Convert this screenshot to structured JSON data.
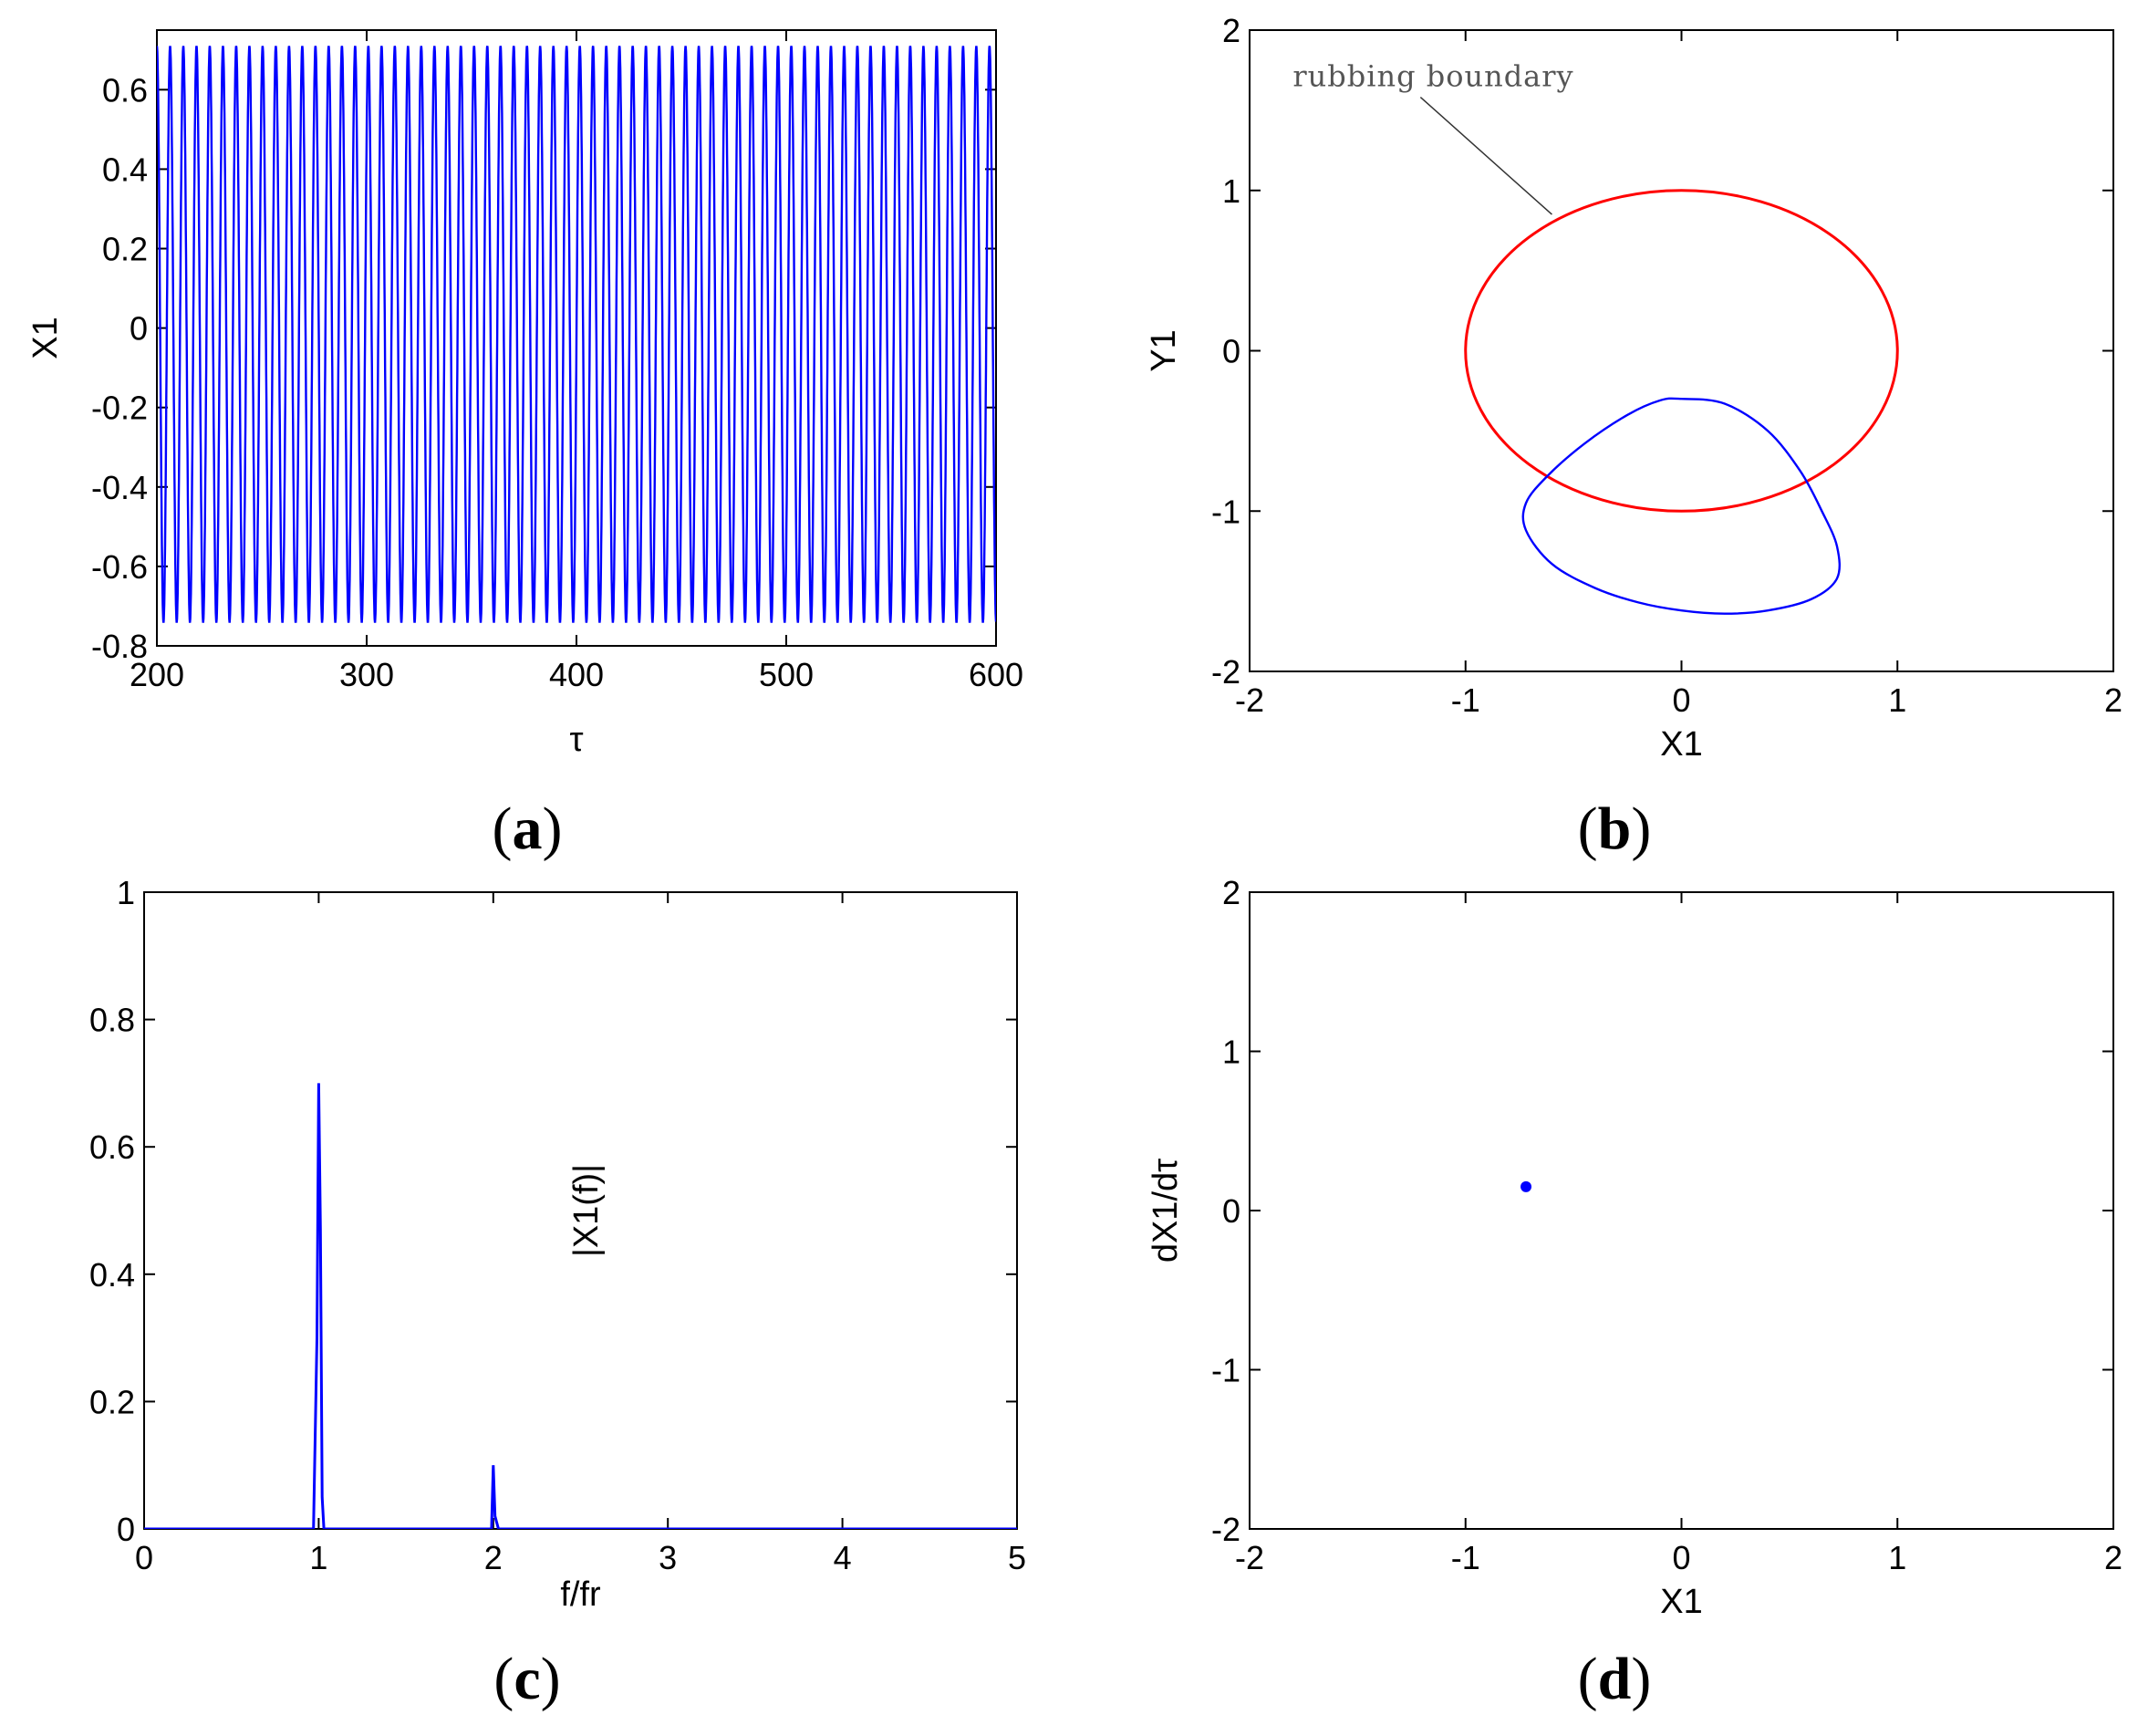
{
  "colors": {
    "trace": "#0000ff",
    "boundary": "#ff0000",
    "axis": "#000000",
    "annotation": "#555555"
  },
  "panels": {
    "a": {
      "caption_open": "(",
      "caption_letter": "a",
      "caption_close": ")"
    },
    "b": {
      "caption_open": "(",
      "caption_letter": "b",
      "caption_close": ")"
    },
    "c": {
      "caption_open": "(",
      "caption_letter": "c",
      "caption_close": ")"
    },
    "d": {
      "caption_open": "(",
      "caption_letter": "d",
      "caption_close": ")"
    }
  },
  "chart_data": [
    {
      "id": "a",
      "type": "line",
      "xlabel": "τ",
      "ylabel": "X1",
      "xlim": [
        200,
        600
      ],
      "ylim": [
        -0.8,
        0.75
      ],
      "xticks": [
        200,
        300,
        400,
        500,
        600
      ],
      "yticks": [
        -0.8,
        -0.6,
        -0.4,
        -0.2,
        0,
        0.2,
        0.4,
        0.6
      ],
      "ytick_labels": [
        "-0.8",
        "-0.6",
        "-0.4",
        "-0.2",
        "0",
        "0.2",
        "0.4",
        "0.6"
      ],
      "grid": false,
      "series": [
        {
          "kind": "periodic",
          "amplitude_max": 0.71,
          "amplitude_min": -0.74,
          "period": 6.3,
          "x_start": 200,
          "x_end": 600
        }
      ]
    },
    {
      "id": "b",
      "type": "line",
      "xlabel": "X1",
      "ylabel": "Y1",
      "xlim": [
        -2,
        2
      ],
      "ylim": [
        -2,
        2
      ],
      "xticks": [
        -2,
        -1,
        0,
        1,
        2
      ],
      "yticks": [
        -2,
        -1,
        0,
        1,
        2
      ],
      "grid": false,
      "annotation": {
        "text": "rubbing boundary",
        "points_to": [
          -0.6,
          0.85
        ],
        "text_at": [
          -1.8,
          1.65
        ]
      },
      "series": [
        {
          "kind": "circle",
          "color": "boundary",
          "cx": 0,
          "cy": 0,
          "r": 1
        },
        {
          "kind": "closed-orbit",
          "color": "trace",
          "x": [
            0.0,
            0.2,
            0.4,
            0.55,
            0.65,
            0.72,
            0.72,
            0.6,
            0.4,
            0.2,
            0.0,
            -0.2,
            -0.4,
            -0.6,
            -0.72,
            -0.72,
            -0.62,
            -0.45,
            -0.25,
            -0.1,
            0.0
          ],
          "y": [
            -0.3,
            -0.33,
            -0.5,
            -0.75,
            -1.0,
            -1.22,
            -1.42,
            -1.55,
            -1.62,
            -1.64,
            -1.62,
            -1.57,
            -1.48,
            -1.33,
            -1.12,
            -0.95,
            -0.78,
            -0.58,
            -0.4,
            -0.31,
            -0.3
          ]
        }
      ]
    },
    {
      "id": "c",
      "type": "line",
      "xlabel": "f/fr",
      "ylabel": "|X1(f)|",
      "xlim": [
        0,
        5
      ],
      "ylim": [
        0,
        1
      ],
      "xticks": [
        0,
        1,
        2,
        3,
        4,
        5
      ],
      "yticks": [
        0,
        0.2,
        0.4,
        0.6,
        0.8,
        1
      ],
      "ytick_labels": [
        "0",
        "0.2",
        "0.4",
        "0.6",
        "0.8",
        "1"
      ],
      "grid": false,
      "series": [
        {
          "kind": "spectrum",
          "x": [
            0,
            0.97,
            0.99,
            1.0,
            1.01,
            1.02,
            1.03,
            1.99,
            2.0,
            2.01,
            2.03,
            5
          ],
          "y": [
            0,
            0,
            0.3,
            0.7,
            0.47,
            0.05,
            0,
            0,
            0.1,
            0.02,
            0,
            0
          ]
        }
      ]
    },
    {
      "id": "d",
      "type": "scatter",
      "xlabel": "X1",
      "ylabel": "dX1/dτ",
      "xlim": [
        -2,
        2
      ],
      "ylim": [
        -2,
        2
      ],
      "xticks": [
        -2,
        -1,
        0,
        1,
        2
      ],
      "yticks": [
        -2,
        -1,
        0,
        1,
        2
      ],
      "grid": false,
      "series": [
        {
          "kind": "points",
          "color": "trace",
          "x": [
            -0.72
          ],
          "y": [
            0.15
          ]
        }
      ]
    }
  ]
}
